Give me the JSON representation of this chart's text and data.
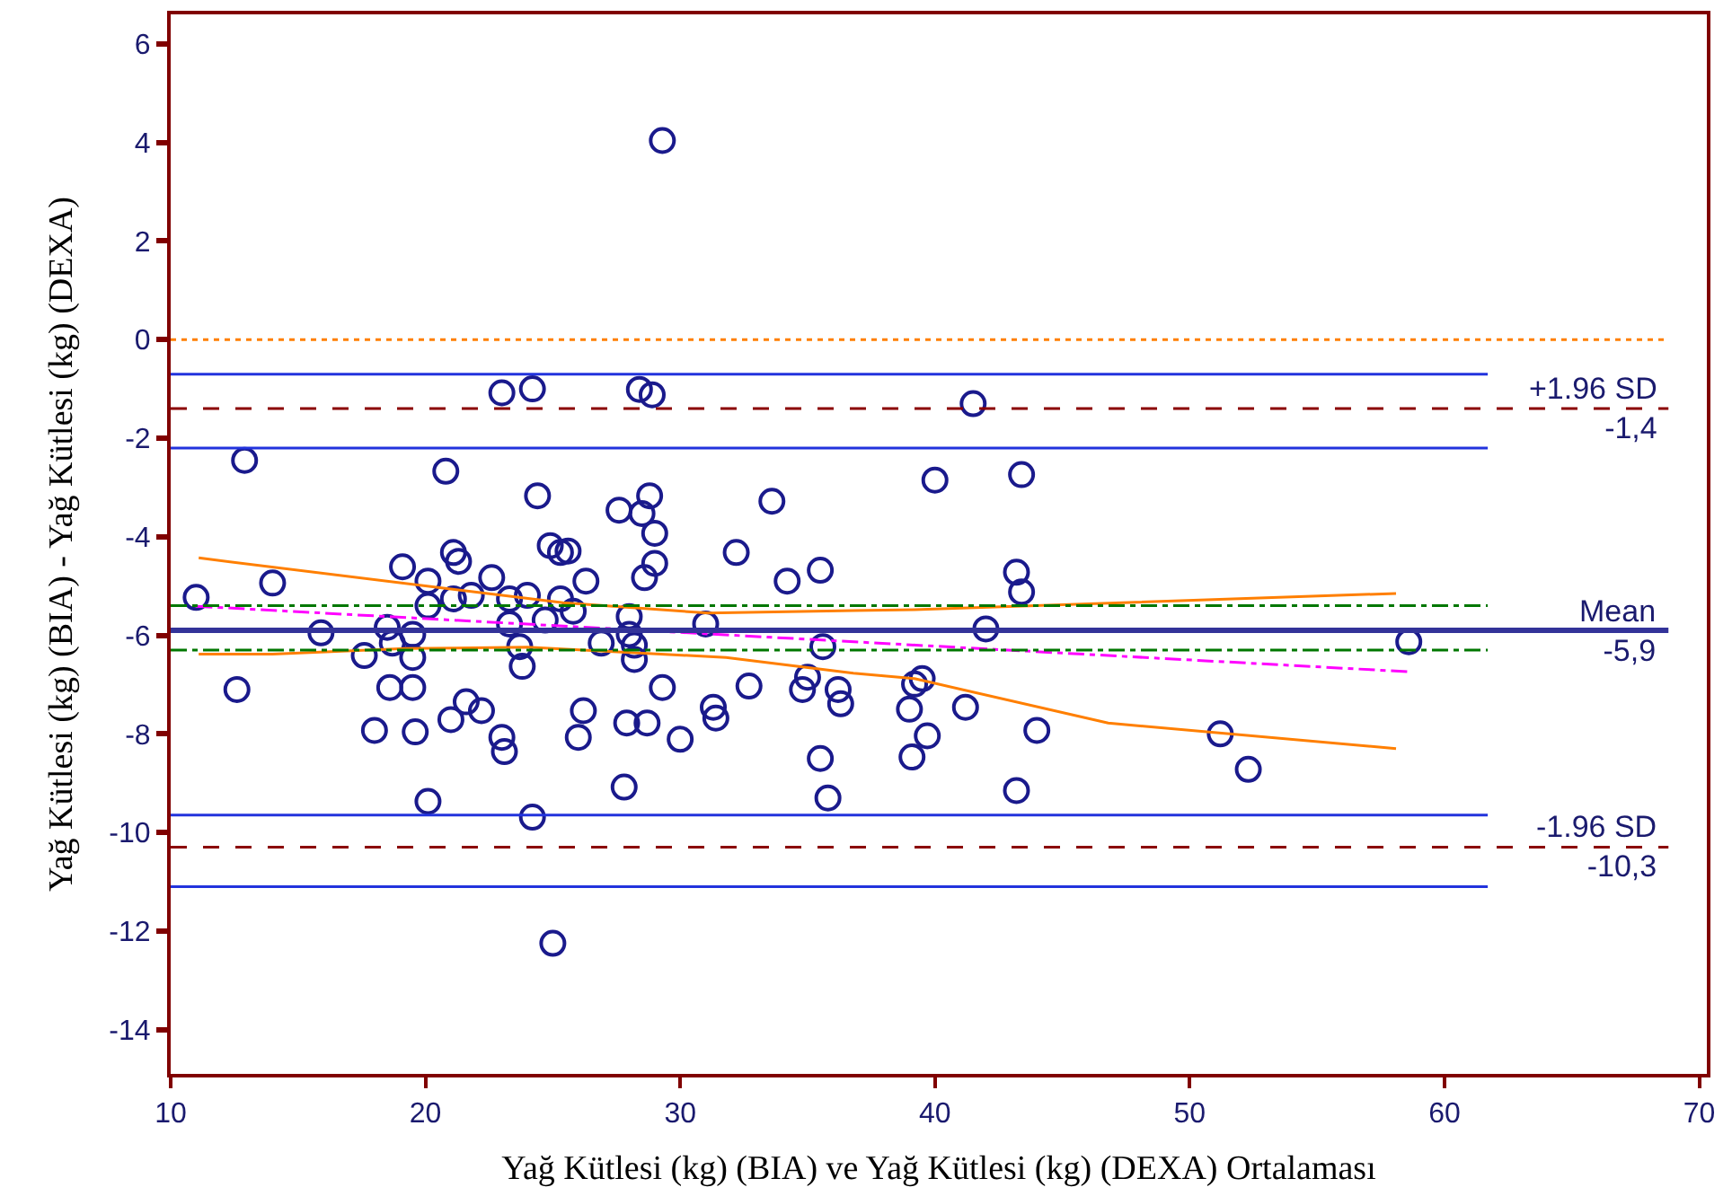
{
  "chart_data": {
    "type": "scatter",
    "xlabel": "Yağ Kütlesi (kg) (BIA) ve Yağ Kütlesi (kg) (DEXA) Ortalaması",
    "ylabel": "Yağ Kütlesi (kg) (BIA) - Yağ Kütlesi (kg) (DEXA)",
    "xlim": [
      10,
      70.3
    ],
    "xticks": [
      10,
      20,
      30,
      40,
      50,
      60,
      70
    ],
    "ylim": [
      -14.9,
      6.6
    ],
    "yticks": [
      -14,
      -12,
      -10,
      -8,
      -6,
      -4,
      -2,
      0,
      2,
      4,
      6
    ],
    "series": [
      {
        "marker": "circle",
        "color": "#1a1a8c",
        "x": [
          11.0,
          12.6,
          12.9,
          14.0,
          15.9,
          17.6,
          18.0,
          18.5,
          18.6,
          18.7,
          19.1,
          19.5,
          19.5,
          19.5,
          19.6,
          20.1,
          20.1,
          20.1,
          20.8,
          21.0,
          21.1,
          21.1,
          21.3,
          21.6,
          21.8,
          22.2,
          22.6,
          23.0,
          23.0,
          23.1,
          23.3,
          23.3,
          23.7,
          23.8,
          24.0,
          24.2,
          24.2,
          24.4,
          24.7,
          24.9,
          25.0,
          25.3,
          25.3,
          25.6,
          25.8,
          26.0,
          26.2,
          26.3,
          26.9,
          27.6,
          27.8,
          27.9,
          28.0,
          28.0,
          28.2,
          28.2,
          28.4,
          28.5,
          28.6,
          28.7,
          28.8,
          28.9,
          29.0,
          29.0,
          29.3,
          29.3,
          30.0,
          31.0,
          31.3,
          31.4,
          32.2,
          32.7,
          33.6,
          34.2,
          34.8,
          35.0,
          35.5,
          35.5,
          35.6,
          35.8,
          36.2,
          36.3,
          39.0,
          39.1,
          39.2,
          39.5,
          39.7,
          40.0,
          41.2,
          41.5,
          42.0,
          43.2,
          43.4,
          43.4,
          43.2,
          44.0,
          51.2,
          52.3,
          58.6
        ],
        "values": [
          -5.23,
          -7.1,
          -2.45,
          -4.94,
          -5.95,
          -6.41,
          -7.93,
          -5.84,
          -7.06,
          -6.16,
          -4.61,
          -6.45,
          -5.98,
          -7.06,
          -7.96,
          -4.9,
          -5.4,
          -9.37,
          -2.67,
          -7.71,
          -4.32,
          -5.26,
          -4.5,
          -7.35,
          -5.19,
          -7.53,
          -4.83,
          -1.08,
          -8.07,
          -8.36,
          -5.26,
          -5.77,
          -6.23,
          -6.63,
          -5.19,
          -1.0,
          -9.69,
          -3.17,
          -5.69,
          -4.18,
          -12.25,
          -4.32,
          -5.26,
          -4.29,
          -5.51,
          -8.07,
          -7.53,
          -4.9,
          -6.16,
          -3.46,
          -9.08,
          -7.78,
          -5.62,
          -5.98,
          -6.2,
          -6.49,
          -1.01,
          -3.53,
          -4.83,
          -7.78,
          -3.17,
          -1.12,
          -3.93,
          -4.54,
          4.04,
          -7.06,
          -8.11,
          -5.77,
          -7.46,
          -7.68,
          -4.32,
          -7.03,
          -3.28,
          -4.9,
          -7.1,
          -6.85,
          -4.68,
          -8.5,
          -6.23,
          -9.3,
          -7.1,
          -7.39,
          -7.5,
          -8.47,
          -6.99,
          -6.88,
          -8.04,
          -2.85,
          -7.46,
          -1.3,
          -5.87,
          -4.72,
          -5.12,
          -2.74,
          -9.15,
          -7.93,
          -8.0,
          -8.72,
          -6.13
        ]
      },
      {
        "type": "line",
        "line_style": "dashdot",
        "color": "#ff00ff",
        "x": [
          11.0,
          58.6
        ],
        "values": [
          -5.41,
          -6.74
        ]
      },
      {
        "type": "line",
        "line_style": "solid",
        "color": "#ff7f00",
        "x": [
          11.1,
          25.4,
          31.1,
          36.8,
          39.2,
          58.1
        ],
        "values": [
          -4.43,
          -5.34,
          -5.55,
          -5.5,
          -5.48,
          -5.15
        ]
      },
      {
        "type": "line",
        "line_style": "solid",
        "color": "#ff7f00",
        "x": [
          11.1,
          14.0,
          19.2,
          24.0,
          31.8,
          36.8,
          39.2,
          46.8,
          58.1
        ],
        "values": [
          -6.38,
          -6.38,
          -6.27,
          -6.24,
          -6.45,
          -6.77,
          -6.88,
          -7.78,
          -8.3
        ]
      },
      {
        "type": "line",
        "line_style": "solid",
        "color": "#2233dd",
        "x": [
          10,
          61.7
        ],
        "values": [
          -0.7,
          -0.7
        ]
      },
      {
        "type": "line",
        "line_style": "solid",
        "color": "#2233dd",
        "x": [
          10,
          61.7
        ],
        "values": [
          -2.2,
          -2.2
        ]
      },
      {
        "type": "line",
        "line_style": "solid",
        "color": "#2233dd",
        "x": [
          10,
          61.7
        ],
        "values": [
          -9.65,
          -9.65
        ]
      },
      {
        "type": "line",
        "line_style": "solid",
        "color": "#2233dd",
        "x": [
          10,
          61.7
        ],
        "values": [
          -11.1,
          -11.1
        ]
      },
      {
        "type": "line",
        "line_style": "dashdot",
        "color": "#007700",
        "x": [
          10,
          61.7
        ],
        "values": [
          -5.4,
          -5.4
        ]
      },
      {
        "type": "line",
        "line_style": "dashdot",
        "color": "#007700",
        "x": [
          10,
          61.7
        ],
        "values": [
          -6.3,
          -6.3
        ]
      }
    ],
    "ref_lines": [
      {
        "axis": "y",
        "value": 0,
        "color": "#ff7f00",
        "line_style": "dotted"
      },
      {
        "axis": "y",
        "value": -1.4,
        "label": "+1.96 SD\n-1,4",
        "color": "#8b0000",
        "line_style": "dashed"
      },
      {
        "axis": "y",
        "value": -5.9,
        "label": "Mean\n-5,9",
        "color": "#333399",
        "line_style": "solid"
      },
      {
        "axis": "y",
        "value": -10.3,
        "label": "-1.96 SD\n-10,3",
        "color": "#8b0000",
        "line_style": "dashed"
      }
    ]
  }
}
